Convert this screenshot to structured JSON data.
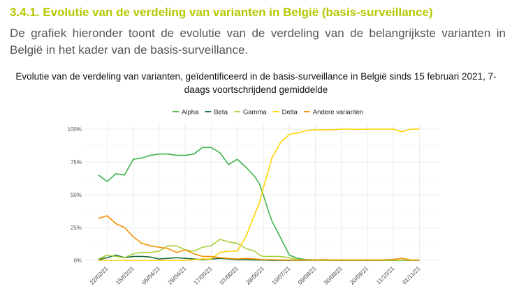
{
  "heading": "3.4.1. Evolutie van de verdeling van varianten in België (basis-surveillance)",
  "paragraph": "De grafiek hieronder toont de evolutie van de verdeling van de belangrijkste varianten in België in het kader van de basis-surveillance.",
  "chart_data": {
    "type": "line",
    "title": "Evolutie van de verdeling van varianten, geïdentificeerd in de basis-surveillance in België sinds 15 februari 2021, 7-daags voortschrijdend gemiddelde",
    "xlabel": "",
    "ylabel": "",
    "ylim": [
      0,
      100
    ],
    "yticks": [
      "0%",
      "25%",
      "50%",
      "75%",
      "100%"
    ],
    "ytick_values": [
      0,
      25,
      50,
      75,
      100
    ],
    "xticks": [
      "22/02/21",
      "15/03/21",
      "05/04/21",
      "26/04/21",
      "17/05/21",
      "07/06/21",
      "28/06/21",
      "19/07/21",
      "09/08/21",
      "30/08/21",
      "20/09/21",
      "11/10/21",
      "01/11/21"
    ],
    "xtick_days": [
      7,
      28,
      49,
      70,
      91,
      112,
      133,
      154,
      175,
      196,
      217,
      238,
      259
    ],
    "x_unit": "days since 15/02/21",
    "x": [
      0,
      7,
      14,
      21,
      28,
      35,
      42,
      49,
      56,
      63,
      70,
      77,
      84,
      91,
      98,
      105,
      112,
      119,
      126,
      130,
      133,
      137,
      140,
      147,
      154,
      161,
      168,
      175,
      182,
      189,
      196,
      203,
      210,
      217,
      224,
      231,
      238,
      245,
      252,
      259
    ],
    "legend_position": "top",
    "series": [
      {
        "name": "Alpha",
        "color": "#3cb44b",
        "values": [
          65,
          60,
          66,
          65,
          77,
          78,
          80,
          81,
          81,
          80,
          80,
          81,
          86,
          86,
          82,
          73,
          77,
          71,
          64,
          58,
          50,
          38,
          30,
          17,
          4,
          1.5,
          0.5,
          0.3,
          0,
          0,
          0,
          0,
          0,
          0,
          0,
          0,
          0,
          0,
          0,
          0
        ]
      },
      {
        "name": "Beta",
        "color": "#1b6b3a",
        "values": [
          0.5,
          2,
          4,
          2,
          3,
          3,
          2.5,
          1,
          1.5,
          2,
          1.5,
          1,
          0.5,
          1,
          1.5,
          1,
          0.5,
          0.5,
          0.3,
          0.2,
          0.2,
          0.1,
          0,
          0,
          0,
          0,
          0,
          0,
          0,
          0,
          0,
          0,
          0,
          0,
          0,
          0,
          0,
          0,
          0,
          0
        ]
      },
      {
        "name": "Gamma",
        "color": "#a8d03a",
        "values": [
          1,
          4,
          3,
          2,
          5,
          6,
          6,
          7,
          11,
          11,
          8,
          7,
          10,
          11,
          16,
          14,
          13,
          9,
          7,
          4,
          3,
          3,
          3,
          3,
          2,
          0.5,
          0.2,
          0,
          0,
          0,
          0,
          0,
          0,
          0,
          0,
          0,
          0,
          0,
          0,
          0
        ]
      },
      {
        "name": "Delta",
        "color": "#ffd200",
        "values": [
          0,
          0,
          0,
          0,
          0,
          0,
          0,
          0,
          0,
          0,
          0,
          0.5,
          1,
          1,
          6,
          7,
          7,
          18,
          35,
          44,
          55,
          68,
          78,
          90,
          96,
          97,
          99,
          99.5,
          99.5,
          99.5,
          100,
          100,
          99.8,
          100,
          100,
          100,
          100,
          98,
          100,
          100
        ]
      },
      {
        "name": "Andere varianten",
        "color": "#f39200",
        "values": [
          32,
          34,
          28,
          25,
          18,
          13,
          11,
          10,
          9,
          6,
          8,
          5,
          3,
          3,
          2,
          1.5,
          1,
          1.5,
          1,
          0.8,
          0.5,
          0.5,
          0.5,
          0.3,
          0.3,
          0.2,
          0.2,
          0.3,
          0.5,
          0.3,
          0.3,
          0.3,
          0.3,
          0.3,
          0.3,
          0.3,
          0.8,
          1.5,
          0.3,
          0.2
        ]
      }
    ]
  }
}
